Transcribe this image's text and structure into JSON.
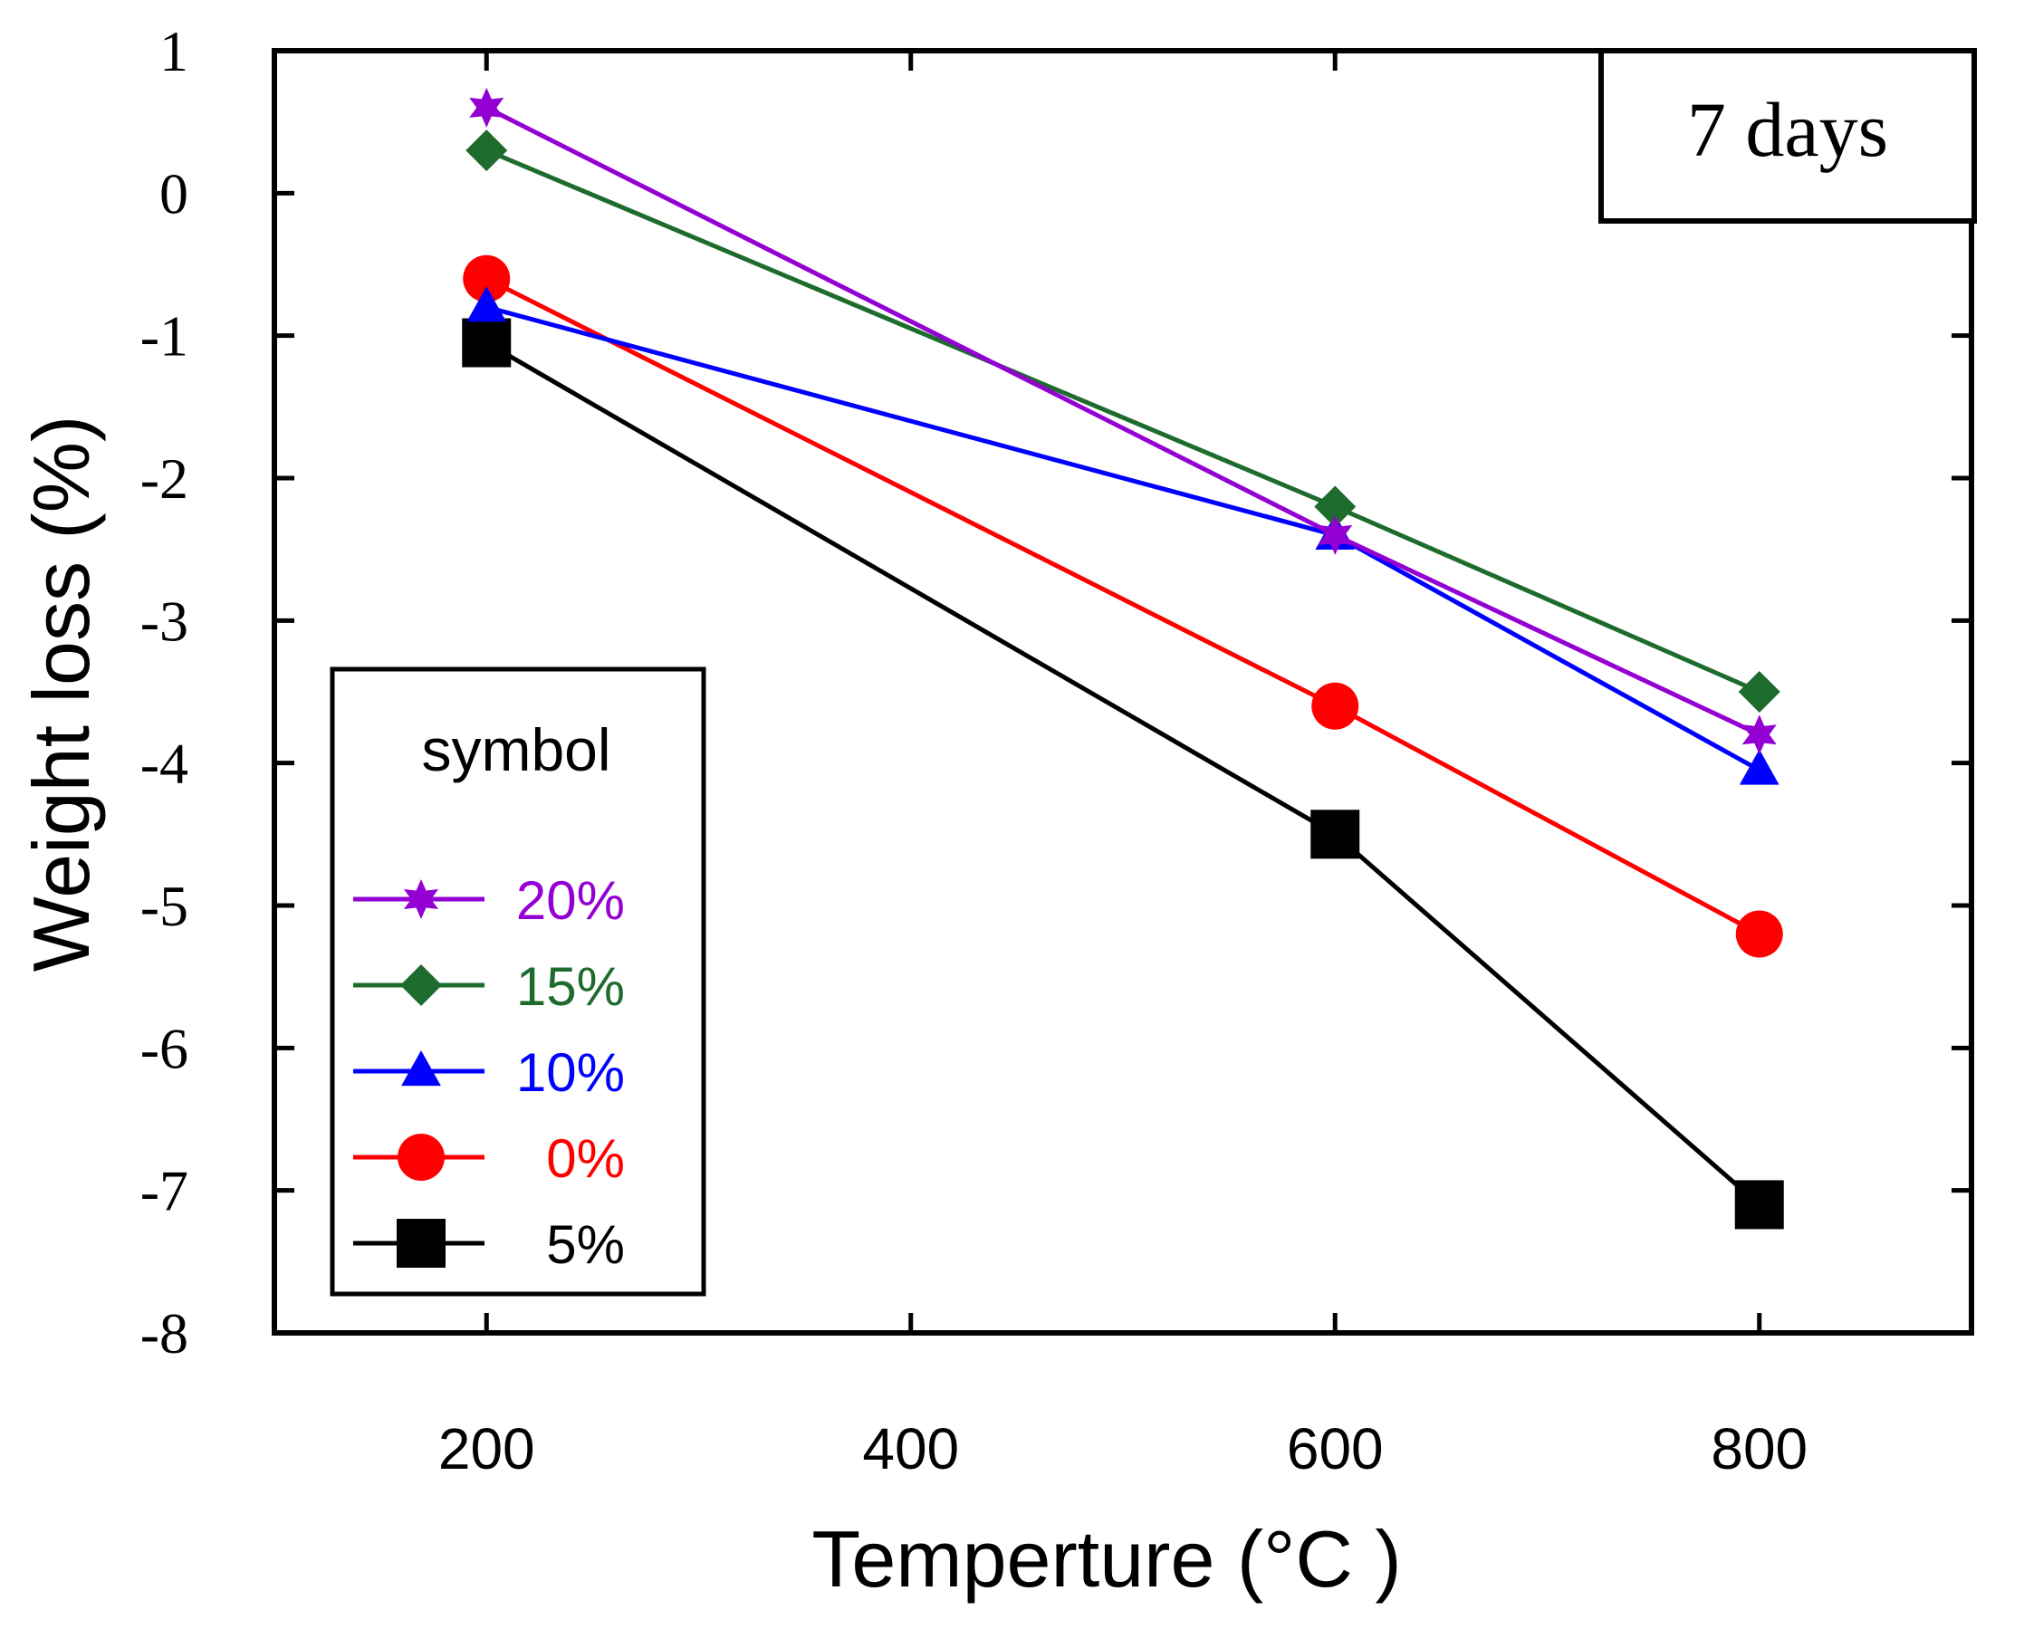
{
  "chart_data": {
    "type": "line",
    "title": "",
    "xlabel": "Temperture (°C )",
    "ylabel": "Weight loss (%)",
    "annotation": "7 days",
    "legend_title": "symbol",
    "legend_position": "bottom-left",
    "xlim": [
      100,
      900
    ],
    "ylim": [
      -8,
      1
    ],
    "x_ticks": [
      200,
      400,
      600,
      800
    ],
    "x_tick_labels": [
      "200",
      "400",
      "600",
      "800"
    ],
    "y_ticks": [
      1,
      0,
      -1,
      -2,
      -3,
      -4,
      -5,
      -6,
      -7,
      -8
    ],
    "y_tick_labels": [
      "1",
      "0",
      "-1",
      "-2",
      "-3",
      "-4",
      "-5",
      "-6",
      "-7",
      "-8"
    ],
    "grid": false,
    "series": [
      {
        "name": "20%",
        "color": "#9400D3",
        "marker": "star",
        "x": [
          200,
          600,
          800
        ],
        "values": [
          0.6,
          -2.4,
          -3.8
        ]
      },
      {
        "name": "15%",
        "color": "#1E6B2E",
        "marker": "diamond",
        "x": [
          200,
          600,
          800
        ],
        "values": [
          0.3,
          -2.2,
          -3.5
        ]
      },
      {
        "name": "10%",
        "color": "#0000FF",
        "marker": "triangle",
        "x": [
          200,
          600,
          800
        ],
        "values": [
          -0.8,
          -2.4,
          -4.05
        ]
      },
      {
        "name": " 0%",
        "color": "#FF0000",
        "marker": "circle",
        "x": [
          200,
          600,
          800
        ],
        "values": [
          -0.6,
          -3.6,
          -5.2
        ]
      },
      {
        "name": " 5%",
        "color": "#000000",
        "marker": "square",
        "x": [
          200,
          600,
          800
        ],
        "values": [
          -1.05,
          -4.5,
          -7.1
        ]
      }
    ]
  }
}
